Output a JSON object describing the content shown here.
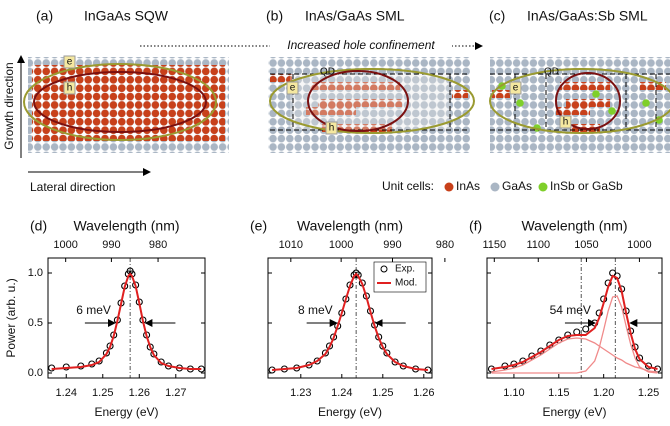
{
  "schematic": {
    "panels": [
      {
        "label": "(a)",
        "title": "InGaAs SQW",
        "e": "e",
        "h": "h"
      },
      {
        "label": "(b)",
        "title": "InAs/GaAs SML",
        "e": "e",
        "h": "h",
        "qd": "QD"
      },
      {
        "label": "(c)",
        "title": "InAs/GaAs:Sb SML",
        "e": "e",
        "h": "h",
        "qd": "QD"
      }
    ],
    "arrow_label": "Increased hole confinement",
    "growth_label": "Growth direction",
    "lateral_label": "Lateral direction",
    "legend_title": "Unit cells:",
    "legend": [
      "InAs",
      "GaAs",
      "InSb or GaSb"
    ]
  },
  "chart_data": [
    {
      "type": "line",
      "label": "(d)",
      "x2label": "Wavelength (nm)",
      "xlabel": "Energy (eV)",
      "ylabel": "Power (arb. u.)",
      "x": [
        1.236,
        1.24,
        1.244,
        1.247,
        1.249,
        1.251,
        1.252,
        1.253,
        1.254,
        1.255,
        1.256,
        1.257,
        1.2575,
        1.258,
        1.259,
        1.26,
        1.261,
        1.262,
        1.263,
        1.264,
        1.266,
        1.268,
        1.271,
        1.274,
        1.277
      ],
      "series": [
        {
          "color": "#000000",
          "marker": "circle",
          "values": [
            0.05,
            0.06,
            0.07,
            0.09,
            0.12,
            0.2,
            0.27,
            0.38,
            0.53,
            0.7,
            0.87,
            0.99,
            1.02,
            0.99,
            0.88,
            0.71,
            0.53,
            0.38,
            0.26,
            0.19,
            0.11,
            0.07,
            0.05,
            0.04,
            0.04
          ]
        },
        {
          "color": "#e02020",
          "values": [
            0.04,
            0.05,
            0.06,
            0.08,
            0.11,
            0.19,
            0.26,
            0.37,
            0.52,
            0.69,
            0.86,
            0.97,
            0.99,
            0.97,
            0.87,
            0.7,
            0.52,
            0.37,
            0.26,
            0.18,
            0.1,
            0.07,
            0.05,
            0.04,
            0.04
          ]
        }
      ],
      "xlim": [
        1.235,
        1.278
      ],
      "xticks": [
        1.24,
        1.25,
        1.26,
        1.27
      ],
      "x2ticks": [
        1000,
        990,
        980
      ],
      "ylim": [
        -0.05,
        1.15
      ],
      "yticks": [
        {
          "value": 0,
          "label": "0.0"
        },
        0.5,
        {
          "value": 1,
          "label": "1.0"
        }
      ],
      "annotation": "6 meV",
      "vlines": [
        1.2575
      ]
    },
    {
      "type": "line",
      "label": "(e)",
      "x2label": "Wavelength (nm)",
      "xlabel": "Energy (eV)",
      "x": [
        1.223,
        1.226,
        1.229,
        1.232,
        1.234,
        1.236,
        1.237,
        1.238,
        1.239,
        1.24,
        1.241,
        1.242,
        1.243,
        1.2435,
        1.244,
        1.245,
        1.246,
        1.247,
        1.248,
        1.249,
        1.25,
        1.251,
        1.253,
        1.255,
        1.258,
        1.261
      ],
      "series": [
        {
          "name": "Exp.",
          "color": "#000000",
          "marker": "circle",
          "values": [
            0.03,
            0.04,
            0.05,
            0.08,
            0.12,
            0.2,
            0.27,
            0.36,
            0.47,
            0.6,
            0.74,
            0.88,
            0.98,
            1.0,
            0.98,
            0.9,
            0.77,
            0.62,
            0.48,
            0.36,
            0.27,
            0.2,
            0.11,
            0.07,
            0.04,
            0.03
          ]
        },
        {
          "name": "Mod.",
          "color": "#e02020",
          "values": [
            0.03,
            0.04,
            0.05,
            0.08,
            0.12,
            0.19,
            0.26,
            0.35,
            0.47,
            0.6,
            0.74,
            0.87,
            0.97,
            0.99,
            0.97,
            0.89,
            0.76,
            0.61,
            0.47,
            0.35,
            0.26,
            0.19,
            0.11,
            0.07,
            0.04,
            0.03
          ]
        }
      ],
      "xlim": [
        1.222,
        1.262
      ],
      "xticks": [
        1.23,
        1.24,
        1.25,
        1.26
      ],
      "x2ticks": [
        1010,
        1000,
        990,
        980
      ],
      "ylim": [
        -0.05,
        1.15
      ],
      "yticks": [
        0,
        0.5,
        1
      ],
      "ytick_labels": false,
      "legend": "upper right",
      "annotation": "8 meV",
      "vlines": [
        1.2435
      ]
    },
    {
      "type": "line",
      "label": "(f)",
      "x2label": "Wavelength (nm)",
      "xlabel": "Energy (eV)",
      "x": [
        1.075,
        1.09,
        1.1,
        1.11,
        1.12,
        1.13,
        1.14,
        1.15,
        1.16,
        1.17,
        1.18,
        1.19,
        1.195,
        1.2,
        1.205,
        1.21,
        1.215,
        1.22,
        1.225,
        1.23,
        1.235,
        1.24,
        1.25,
        1.26
      ],
      "series": [
        {
          "color": "#000000",
          "marker": "circle",
          "values": [
            0.04,
            0.07,
            0.09,
            0.12,
            0.17,
            0.22,
            0.28,
            0.33,
            0.38,
            0.41,
            0.44,
            0.5,
            0.6,
            0.74,
            0.9,
            1.0,
            0.97,
            0.84,
            0.62,
            0.42,
            0.26,
            0.15,
            0.07,
            0.04
          ]
        },
        {
          "color": "#e02020",
          "values": [
            0.04,
            0.06,
            0.08,
            0.11,
            0.16,
            0.21,
            0.27,
            0.33,
            0.37,
            0.38,
            0.38,
            0.45,
            0.55,
            0.7,
            0.86,
            0.97,
            0.95,
            0.82,
            0.6,
            0.4,
            0.24,
            0.14,
            0.06,
            0.04
          ]
        },
        {
          "color": "#f08a8a",
          "values": [
            0,
            0,
            0,
            0,
            0,
            0,
            0,
            0,
            0,
            0,
            0.02,
            0.12,
            0.25,
            0.43,
            0.62,
            0.76,
            0.77,
            0.66,
            0.47,
            0.29,
            0.15,
            0.06,
            0.01,
            0
          ]
        },
        {
          "color": "#f08a8a",
          "values": [
            0.01,
            0.03,
            0.05,
            0.08,
            0.13,
            0.18,
            0.24,
            0.3,
            0.34,
            0.35,
            0.34,
            0.3,
            0.27,
            0.24,
            0.21,
            0.18,
            0.15,
            0.13,
            0.1,
            0.08,
            0.06,
            0.05,
            0.02,
            0.01
          ]
        }
      ],
      "xlim": [
        1.07,
        1.265
      ],
      "xticks": [
        {
          "value": 1.1,
          "label": "1.10"
        },
        1.15,
        {
          "value": 1.2,
          "label": "1.20"
        },
        1.25
      ],
      "x2ticks": [
        1150,
        1100,
        1050,
        1000
      ],
      "ylim": [
        -0.05,
        1.15
      ],
      "yticks": [
        0,
        0.5,
        1
      ],
      "ytick_labels": false,
      "annotation": "54 meV",
      "vlines": [
        1.213,
        1.175
      ]
    }
  ]
}
